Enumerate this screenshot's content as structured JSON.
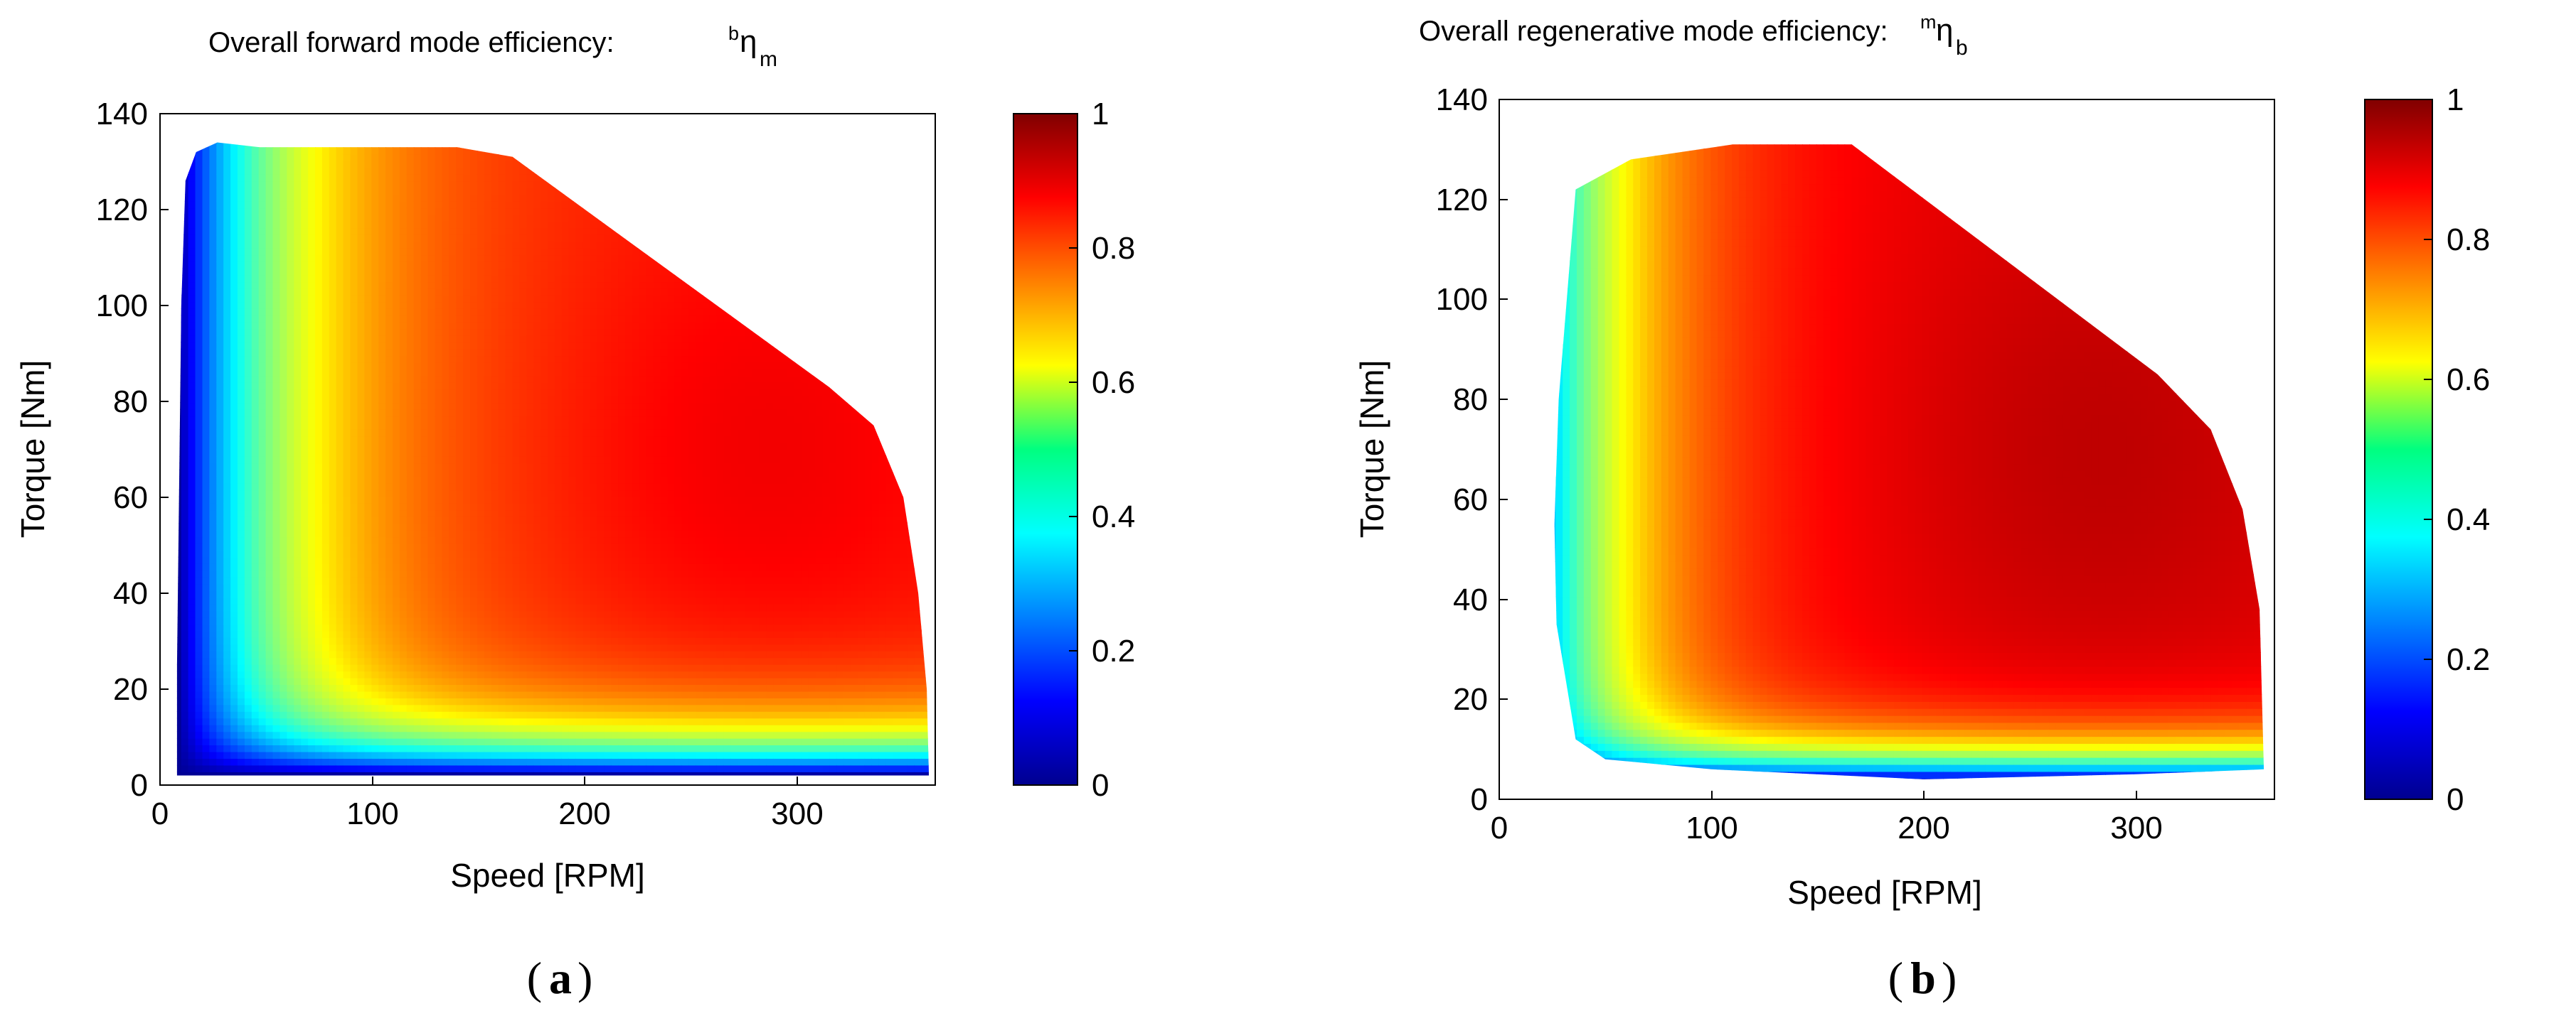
{
  "chart_data": [
    {
      "type": "heatmap",
      "id": "a",
      "title": "Overall forward mode efficiency:",
      "title_symbol": {
        "pre_superscript": "b",
        "symbol": "η",
        "subscript": "m"
      },
      "xlabel": "Speed [RPM]",
      "ylabel": "Torque [Nm]",
      "xlim": [
        0,
        365
      ],
      "ylim": [
        0,
        140
      ],
      "xticks": [
        0,
        100,
        200,
        300
      ],
      "yticks": [
        0,
        20,
        40,
        60,
        80,
        100,
        120,
        140
      ],
      "colorbar": {
        "range": [
          0,
          1
        ],
        "ticks": [
          0,
          0.2,
          0.4,
          0.6,
          0.8,
          1
        ],
        "tick_labels": [
          "0",
          "0.2",
          "0.4",
          "0.6",
          "0.8",
          "1"
        ],
        "colormap": "jet"
      },
      "caption": "a",
      "boundary": [
        [
          8,
          2
        ],
        [
          8,
          25
        ],
        [
          10,
          100
        ],
        [
          12,
          126
        ],
        [
          17,
          132
        ],
        [
          27,
          134
        ],
        [
          47,
          133
        ],
        [
          140,
          133
        ],
        [
          166,
          131
        ],
        [
          315,
          83
        ],
        [
          336,
          75
        ],
        [
          350,
          60
        ],
        [
          357,
          40
        ],
        [
          361,
          20
        ],
        [
          362,
          2
        ]
      ],
      "efficiency_model": {
        "vmin": 0.02,
        "vmax": 0.85,
        "speed_ramp": 50,
        "torque_ramp": 8,
        "torque_offset": 2
      }
    },
    {
      "type": "heatmap",
      "id": "b",
      "title": "Overall regenerative mode efficiency:",
      "title_symbol": {
        "pre_superscript": "m",
        "symbol": "η",
        "subscript": "b"
      },
      "xlabel": "Speed [RPM]",
      "ylabel": "Torque [Nm]",
      "xlim": [
        0,
        365
      ],
      "ylim": [
        0,
        140
      ],
      "xticks": [
        0,
        100,
        200,
        300
      ],
      "yticks": [
        0,
        20,
        40,
        60,
        80,
        100,
        120,
        140
      ],
      "colorbar": {
        "range": [
          0,
          1
        ],
        "ticks": [
          0,
          0.2,
          0.4,
          0.6,
          0.8,
          1
        ],
        "tick_labels": [
          "0",
          "0.2",
          "0.4",
          "0.6",
          "0.8",
          "1"
        ],
        "colormap": "jet"
      },
      "caption": "b",
      "boundary": [
        [
          36,
          12
        ],
        [
          27,
          35
        ],
        [
          26,
          55
        ],
        [
          28,
          80
        ],
        [
          36,
          122
        ],
        [
          62,
          128
        ],
        [
          110,
          131
        ],
        [
          166,
          131
        ],
        [
          310,
          85
        ],
        [
          335,
          74
        ],
        [
          350,
          58
        ],
        [
          358,
          38
        ],
        [
          360,
          6
        ],
        [
          300,
          5
        ],
        [
          200,
          4
        ],
        [
          100,
          6
        ],
        [
          50,
          8
        ]
      ],
      "efficiency_model": {
        "vmin": 0.05,
        "vmax": 0.9,
        "speed_ramp": 45,
        "torque_ramp": 6,
        "torque_offset": 4
      }
    }
  ]
}
